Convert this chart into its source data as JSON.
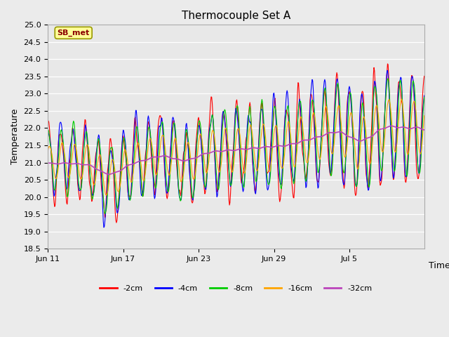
{
  "title": "Thermocouple Set A",
  "xlabel": "Time",
  "ylabel": "Temperature",
  "ylim": [
    18.5,
    25.0
  ],
  "annotation": "SB_met",
  "annotation_color": "#8B0000",
  "annotation_bg": "#FFFF99",
  "series": [
    {
      "label": "-2cm",
      "color": "#FF0000",
      "lw": 0.8
    },
    {
      "label": "-4cm",
      "color": "#0000FF",
      "lw": 0.8
    },
    {
      "label": "-8cm",
      "color": "#00CC00",
      "lw": 0.8
    },
    {
      "label": "-16cm",
      "color": "#FFA500",
      "lw": 0.8
    },
    {
      "label": "-32cm",
      "color": "#BB44BB",
      "lw": 1.2
    }
  ],
  "xtick_labels": [
    "Jun 11",
    "Jun 17",
    "Jun 23",
    "Jun 29",
    "Jul 5"
  ],
  "xtick_positions": [
    0,
    144,
    288,
    432,
    576
  ],
  "ytick_vals": [
    18.5,
    19.0,
    19.5,
    20.0,
    20.5,
    21.0,
    21.5,
    22.0,
    22.5,
    23.0,
    23.5,
    24.0,
    24.5,
    25.0
  ],
  "fig_bg": "#EBEBEB",
  "plot_bg": "#E8E8E8",
  "grid_color": "#FFFFFF",
  "n_points": 720,
  "seed": 42
}
